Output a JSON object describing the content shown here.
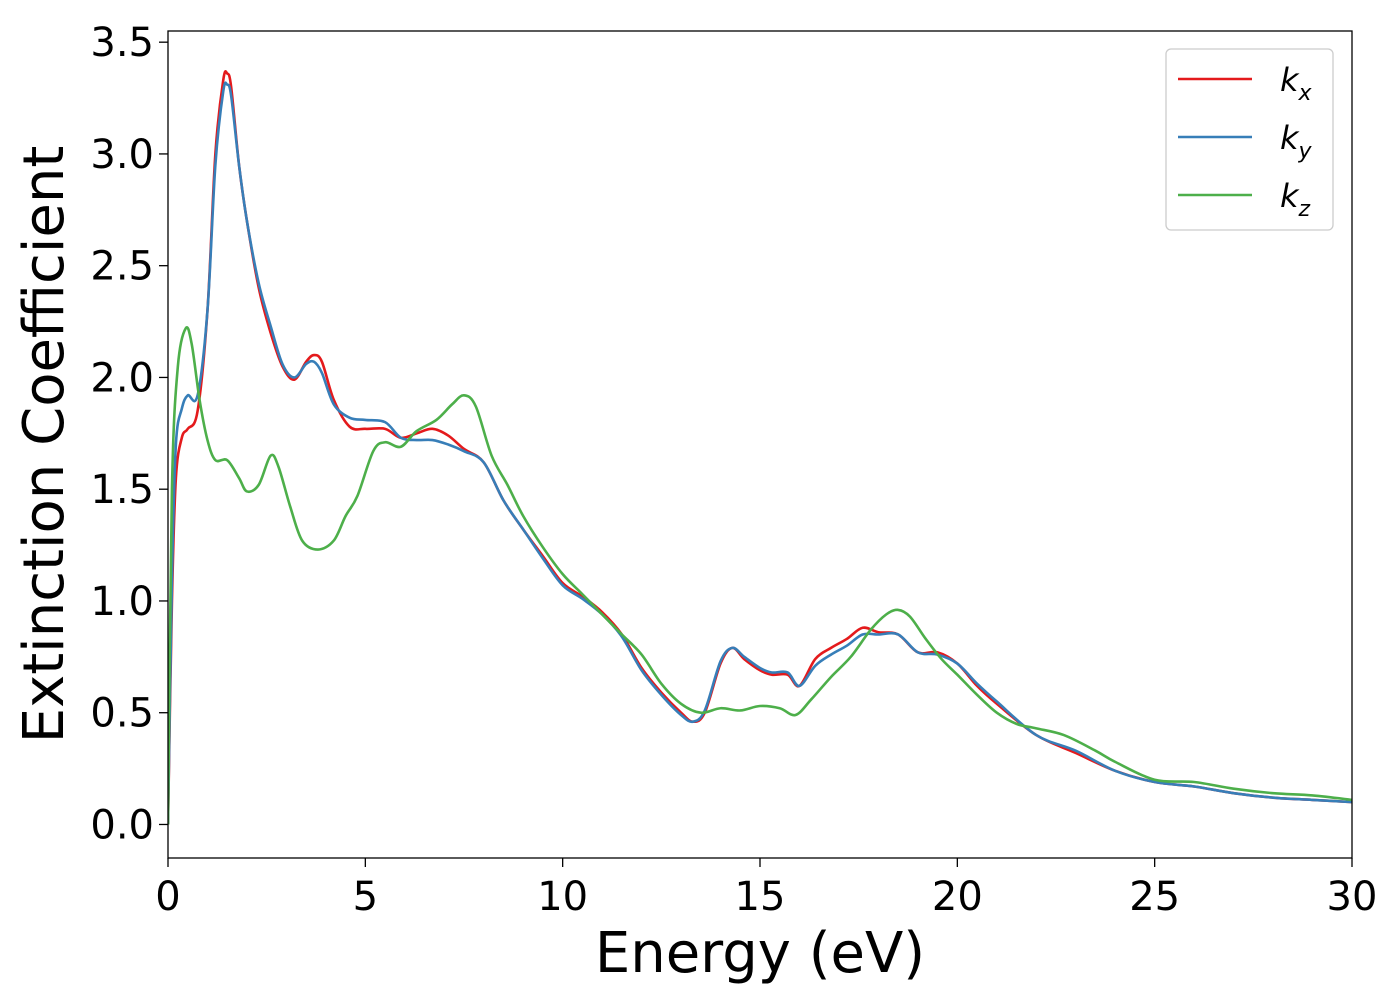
{
  "chart_data": {
    "type": "line",
    "title": "",
    "xlabel": "Energy (eV)",
    "ylabel": "Extinction Coefficient",
    "xlim": [
      0,
      30
    ],
    "ylim": [
      -0.15,
      3.55
    ],
    "xticks": [
      0,
      5,
      10,
      15,
      20,
      25,
      30
    ],
    "xtick_labels": [
      "0",
      "5",
      "10",
      "15",
      "20",
      "25",
      "30"
    ],
    "yticks": [
      0.0,
      0.5,
      1.0,
      1.5,
      2.0,
      2.5,
      3.0,
      3.5
    ],
    "ytick_labels": [
      "0.0",
      "0.5",
      "1.0",
      "1.5",
      "2.0",
      "2.5",
      "3.0",
      "3.5"
    ],
    "grid": false,
    "legend_position": "top-right",
    "series": [
      {
        "name": "k_x",
        "label_base": "k",
        "label_sub": "x",
        "color": "#e41a1c",
        "points": [
          [
            0,
            0.0
          ],
          [
            0.1,
            1.0
          ],
          [
            0.2,
            1.55
          ],
          [
            0.35,
            1.73
          ],
          [
            0.5,
            1.77
          ],
          [
            0.75,
            1.85
          ],
          [
            1.0,
            2.3
          ],
          [
            1.2,
            3.0
          ],
          [
            1.4,
            3.33
          ],
          [
            1.5,
            3.36
          ],
          [
            1.6,
            3.3
          ],
          [
            1.8,
            2.95
          ],
          [
            2.0,
            2.7
          ],
          [
            2.3,
            2.4
          ],
          [
            2.6,
            2.2
          ],
          [
            2.9,
            2.05
          ],
          [
            3.2,
            1.99
          ],
          [
            3.5,
            2.07
          ],
          [
            3.7,
            2.1
          ],
          [
            3.9,
            2.07
          ],
          [
            4.2,
            1.9
          ],
          [
            4.6,
            1.78
          ],
          [
            5.0,
            1.77
          ],
          [
            5.5,
            1.77
          ],
          [
            5.9,
            1.73
          ],
          [
            6.3,
            1.75
          ],
          [
            6.7,
            1.77
          ],
          [
            7.1,
            1.74
          ],
          [
            7.5,
            1.68
          ],
          [
            8.0,
            1.62
          ],
          [
            8.5,
            1.45
          ],
          [
            9.0,
            1.32
          ],
          [
            9.5,
            1.2
          ],
          [
            10.0,
            1.08
          ],
          [
            10.5,
            1.02
          ],
          [
            11.0,
            0.95
          ],
          [
            11.5,
            0.85
          ],
          [
            12.0,
            0.7
          ],
          [
            12.5,
            0.59
          ],
          [
            13.0,
            0.5
          ],
          [
            13.3,
            0.46
          ],
          [
            13.6,
            0.5
          ],
          [
            14.0,
            0.72
          ],
          [
            14.3,
            0.79
          ],
          [
            14.6,
            0.74
          ],
          [
            15.0,
            0.69
          ],
          [
            15.3,
            0.67
          ],
          [
            15.7,
            0.67
          ],
          [
            16.0,
            0.62
          ],
          [
            16.4,
            0.74
          ],
          [
            16.8,
            0.79
          ],
          [
            17.2,
            0.83
          ],
          [
            17.6,
            0.88
          ],
          [
            18.0,
            0.86
          ],
          [
            18.5,
            0.85
          ],
          [
            19.0,
            0.77
          ],
          [
            19.5,
            0.77
          ],
          [
            20.0,
            0.72
          ],
          [
            20.5,
            0.62
          ],
          [
            21.0,
            0.54
          ],
          [
            22.0,
            0.4
          ],
          [
            23.0,
            0.32
          ],
          [
            24.0,
            0.24
          ],
          [
            25.0,
            0.19
          ],
          [
            26.0,
            0.17
          ],
          [
            27.0,
            0.14
          ],
          [
            28.0,
            0.12
          ],
          [
            29.0,
            0.11
          ],
          [
            30.0,
            0.1
          ]
        ]
      },
      {
        "name": "k_y",
        "label_base": "k",
        "label_sub": "y",
        "color": "#377eb8",
        "points": [
          [
            0,
            0.0
          ],
          [
            0.1,
            1.1
          ],
          [
            0.2,
            1.7
          ],
          [
            0.35,
            1.86
          ],
          [
            0.5,
            1.92
          ],
          [
            0.75,
            1.92
          ],
          [
            1.0,
            2.3
          ],
          [
            1.2,
            2.95
          ],
          [
            1.4,
            3.28
          ],
          [
            1.5,
            3.31
          ],
          [
            1.6,
            3.26
          ],
          [
            1.8,
            2.95
          ],
          [
            2.0,
            2.7
          ],
          [
            2.3,
            2.42
          ],
          [
            2.6,
            2.23
          ],
          [
            2.9,
            2.06
          ],
          [
            3.2,
            2.0
          ],
          [
            3.5,
            2.06
          ],
          [
            3.7,
            2.07
          ],
          [
            3.9,
            2.02
          ],
          [
            4.2,
            1.88
          ],
          [
            4.6,
            1.82
          ],
          [
            5.0,
            1.81
          ],
          [
            5.5,
            1.8
          ],
          [
            5.9,
            1.73
          ],
          [
            6.3,
            1.72
          ],
          [
            6.7,
            1.72
          ],
          [
            7.1,
            1.7
          ],
          [
            7.5,
            1.67
          ],
          [
            8.0,
            1.62
          ],
          [
            8.5,
            1.45
          ],
          [
            9.0,
            1.32
          ],
          [
            9.5,
            1.19
          ],
          [
            10.0,
            1.07
          ],
          [
            10.5,
            1.01
          ],
          [
            11.0,
            0.94
          ],
          [
            11.5,
            0.84
          ],
          [
            12.0,
            0.69
          ],
          [
            12.5,
            0.58
          ],
          [
            13.0,
            0.49
          ],
          [
            13.3,
            0.46
          ],
          [
            13.6,
            0.51
          ],
          [
            14.0,
            0.73
          ],
          [
            14.3,
            0.79
          ],
          [
            14.6,
            0.75
          ],
          [
            15.0,
            0.7
          ],
          [
            15.3,
            0.68
          ],
          [
            15.7,
            0.68
          ],
          [
            16.0,
            0.62
          ],
          [
            16.4,
            0.71
          ],
          [
            16.8,
            0.76
          ],
          [
            17.2,
            0.8
          ],
          [
            17.6,
            0.85
          ],
          [
            18.0,
            0.85
          ],
          [
            18.5,
            0.85
          ],
          [
            19.0,
            0.77
          ],
          [
            19.5,
            0.76
          ],
          [
            20.0,
            0.72
          ],
          [
            20.5,
            0.63
          ],
          [
            21.0,
            0.55
          ],
          [
            22.0,
            0.4
          ],
          [
            23.0,
            0.33
          ],
          [
            24.0,
            0.24
          ],
          [
            25.0,
            0.19
          ],
          [
            26.0,
            0.17
          ],
          [
            27.0,
            0.14
          ],
          [
            28.0,
            0.12
          ],
          [
            29.0,
            0.11
          ],
          [
            30.0,
            0.1
          ]
        ]
      },
      {
        "name": "k_z",
        "label_base": "k",
        "label_sub": "z",
        "color": "#4daf4a",
        "points": [
          [
            0,
            0.0
          ],
          [
            0.1,
            1.5
          ],
          [
            0.25,
            2.05
          ],
          [
            0.45,
            2.22
          ],
          [
            0.6,
            2.15
          ],
          [
            0.8,
            1.9
          ],
          [
            1.0,
            1.72
          ],
          [
            1.2,
            1.63
          ],
          [
            1.5,
            1.63
          ],
          [
            1.8,
            1.55
          ],
          [
            2.0,
            1.49
          ],
          [
            2.3,
            1.52
          ],
          [
            2.6,
            1.65
          ],
          [
            2.8,
            1.6
          ],
          [
            3.1,
            1.42
          ],
          [
            3.4,
            1.27
          ],
          [
            3.8,
            1.23
          ],
          [
            4.2,
            1.27
          ],
          [
            4.5,
            1.38
          ],
          [
            4.8,
            1.47
          ],
          [
            5.2,
            1.67
          ],
          [
            5.5,
            1.71
          ],
          [
            5.9,
            1.69
          ],
          [
            6.3,
            1.76
          ],
          [
            6.8,
            1.81
          ],
          [
            7.2,
            1.88
          ],
          [
            7.5,
            1.92
          ],
          [
            7.8,
            1.87
          ],
          [
            8.2,
            1.65
          ],
          [
            8.6,
            1.52
          ],
          [
            9.0,
            1.38
          ],
          [
            9.5,
            1.24
          ],
          [
            10.0,
            1.12
          ],
          [
            10.5,
            1.03
          ],
          [
            11.0,
            0.94
          ],
          [
            11.5,
            0.85
          ],
          [
            12.0,
            0.76
          ],
          [
            12.5,
            0.63
          ],
          [
            13.0,
            0.54
          ],
          [
            13.5,
            0.5
          ],
          [
            14.0,
            0.52
          ],
          [
            14.5,
            0.51
          ],
          [
            15.0,
            0.53
          ],
          [
            15.5,
            0.52
          ],
          [
            15.9,
            0.49
          ],
          [
            16.3,
            0.56
          ],
          [
            16.8,
            0.66
          ],
          [
            17.3,
            0.75
          ],
          [
            17.8,
            0.87
          ],
          [
            18.2,
            0.94
          ],
          [
            18.5,
            0.96
          ],
          [
            18.8,
            0.93
          ],
          [
            19.2,
            0.83
          ],
          [
            19.6,
            0.74
          ],
          [
            20.0,
            0.67
          ],
          [
            20.5,
            0.58
          ],
          [
            21.0,
            0.5
          ],
          [
            21.5,
            0.45
          ],
          [
            22.0,
            0.43
          ],
          [
            22.7,
            0.4
          ],
          [
            23.5,
            0.33
          ],
          [
            24.0,
            0.28
          ],
          [
            25.0,
            0.2
          ],
          [
            26.0,
            0.19
          ],
          [
            27.0,
            0.16
          ],
          [
            28.0,
            0.14
          ],
          [
            29.0,
            0.13
          ],
          [
            30.0,
            0.11
          ]
        ]
      }
    ]
  }
}
